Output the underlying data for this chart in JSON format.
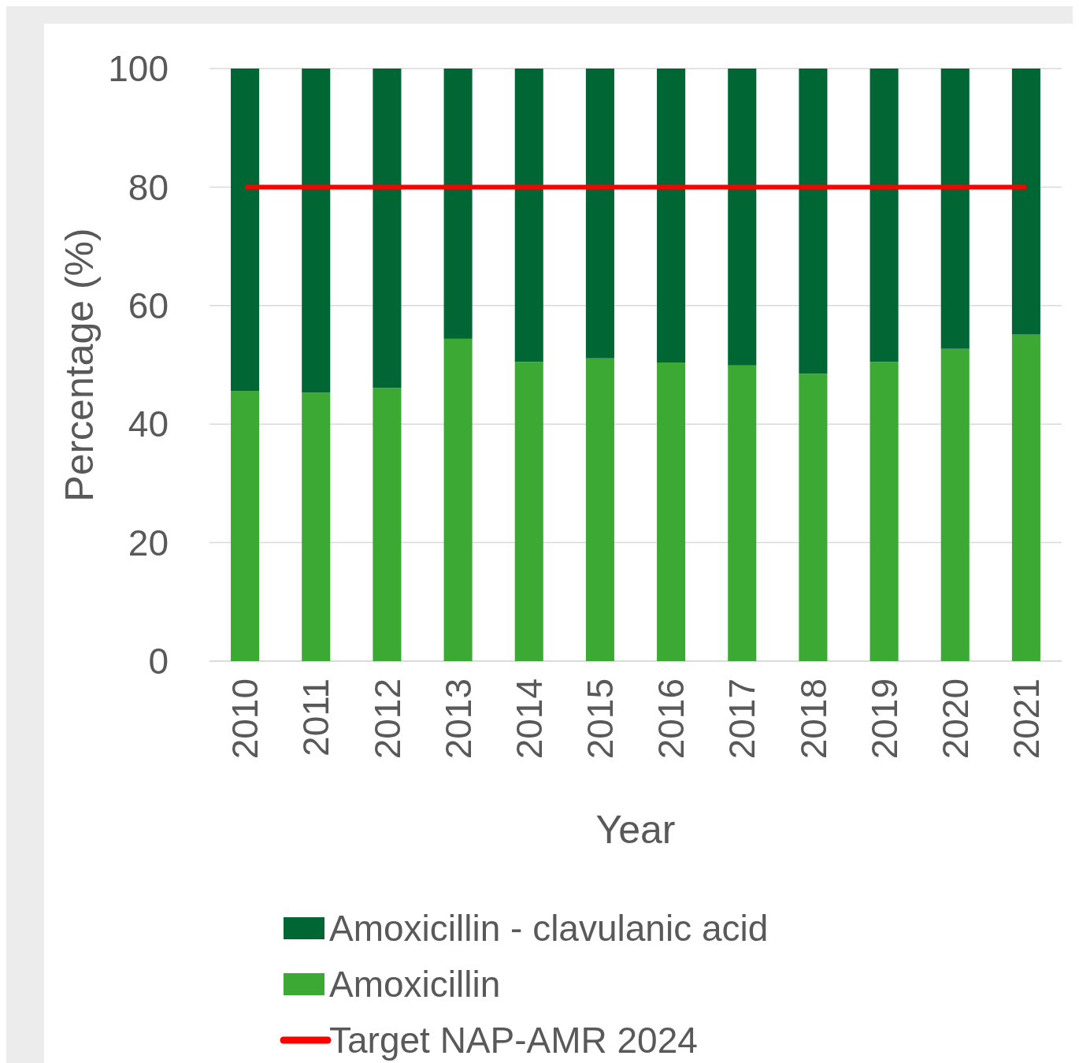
{
  "chart_data": {
    "type": "bar",
    "xlabel": "Year",
    "ylabel": "Percentage (%)",
    "stacked": true,
    "grid": "y",
    "legend": "bottom",
    "categories": [
      "2010",
      "2011",
      "2012",
      "2013",
      "2014",
      "2015",
      "2016",
      "2017",
      "2018",
      "2019",
      "2020",
      "2021"
    ],
    "ylim": [
      0,
      100
    ],
    "yticks": [
      0,
      20,
      40,
      60,
      80,
      100
    ],
    "series": [
      {
        "name": "Amoxicillin",
        "color": "#3ca935",
        "values": [
          45.6,
          45.3,
          46.1,
          54.4,
          50.5,
          51.1,
          50.4,
          49.9,
          48.5,
          50.5,
          52.7,
          55.1
        ]
      },
      {
        "name": "Amoxicillin - clavulanic acid",
        "color": "#006633",
        "values": [
          54.4,
          54.7,
          53.9,
          45.6,
          49.5,
          48.9,
          49.6,
          50.1,
          51.5,
          49.5,
          47.3,
          44.9
        ]
      },
      {
        "name": "Target NAP-AMR 2024",
        "type": "line",
        "color": "#ff0000",
        "values": [
          80,
          80,
          80,
          80,
          80,
          80,
          80,
          80,
          80,
          80,
          80,
          80
        ]
      }
    ]
  }
}
